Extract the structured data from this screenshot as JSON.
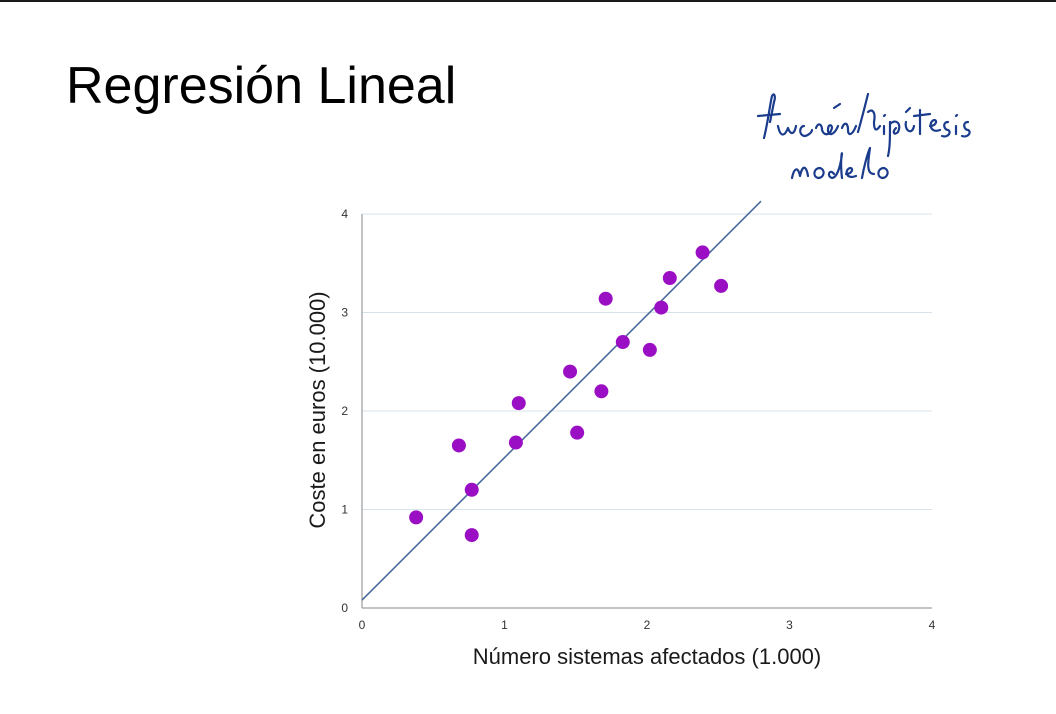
{
  "slide": {
    "title": "Regresión Lineal",
    "annotation": "función hipótesis modelo"
  },
  "colors": {
    "point": "#9b0fc4",
    "line": "#4a6a9a",
    "grid": "#d7e3ea",
    "axis": "#8a8a8a"
  },
  "chart_data": {
    "type": "scatter",
    "title": "",
    "xlabel": "Número sistemas afectados (1.000)",
    "ylabel": "Coste en euros (10.000)",
    "xlim": [
      0,
      4
    ],
    "ylim": [
      0,
      4
    ],
    "xticks": [
      "0",
      "1",
      "2",
      "3",
      "4"
    ],
    "yticks": [
      "0",
      "1",
      "2",
      "3",
      "4"
    ],
    "grid": true,
    "points": [
      {
        "x": 0.38,
        "y": 0.92
      },
      {
        "x": 0.68,
        "y": 1.65
      },
      {
        "x": 0.77,
        "y": 1.2
      },
      {
        "x": 0.77,
        "y": 0.74
      },
      {
        "x": 1.08,
        "y": 1.68
      },
      {
        "x": 1.1,
        "y": 2.08
      },
      {
        "x": 1.46,
        "y": 2.4
      },
      {
        "x": 1.51,
        "y": 1.78
      },
      {
        "x": 1.68,
        "y": 2.2
      },
      {
        "x": 1.71,
        "y": 3.14
      },
      {
        "x": 1.83,
        "y": 2.7
      },
      {
        "x": 2.02,
        "y": 2.62
      },
      {
        "x": 2.1,
        "y": 3.05
      },
      {
        "x": 2.16,
        "y": 3.35
      },
      {
        "x": 2.39,
        "y": 3.61
      },
      {
        "x": 2.52,
        "y": 3.27
      }
    ],
    "fit_line": {
      "x": [
        0,
        2.8
      ],
      "y": [
        0.08,
        4.13
      ]
    }
  }
}
